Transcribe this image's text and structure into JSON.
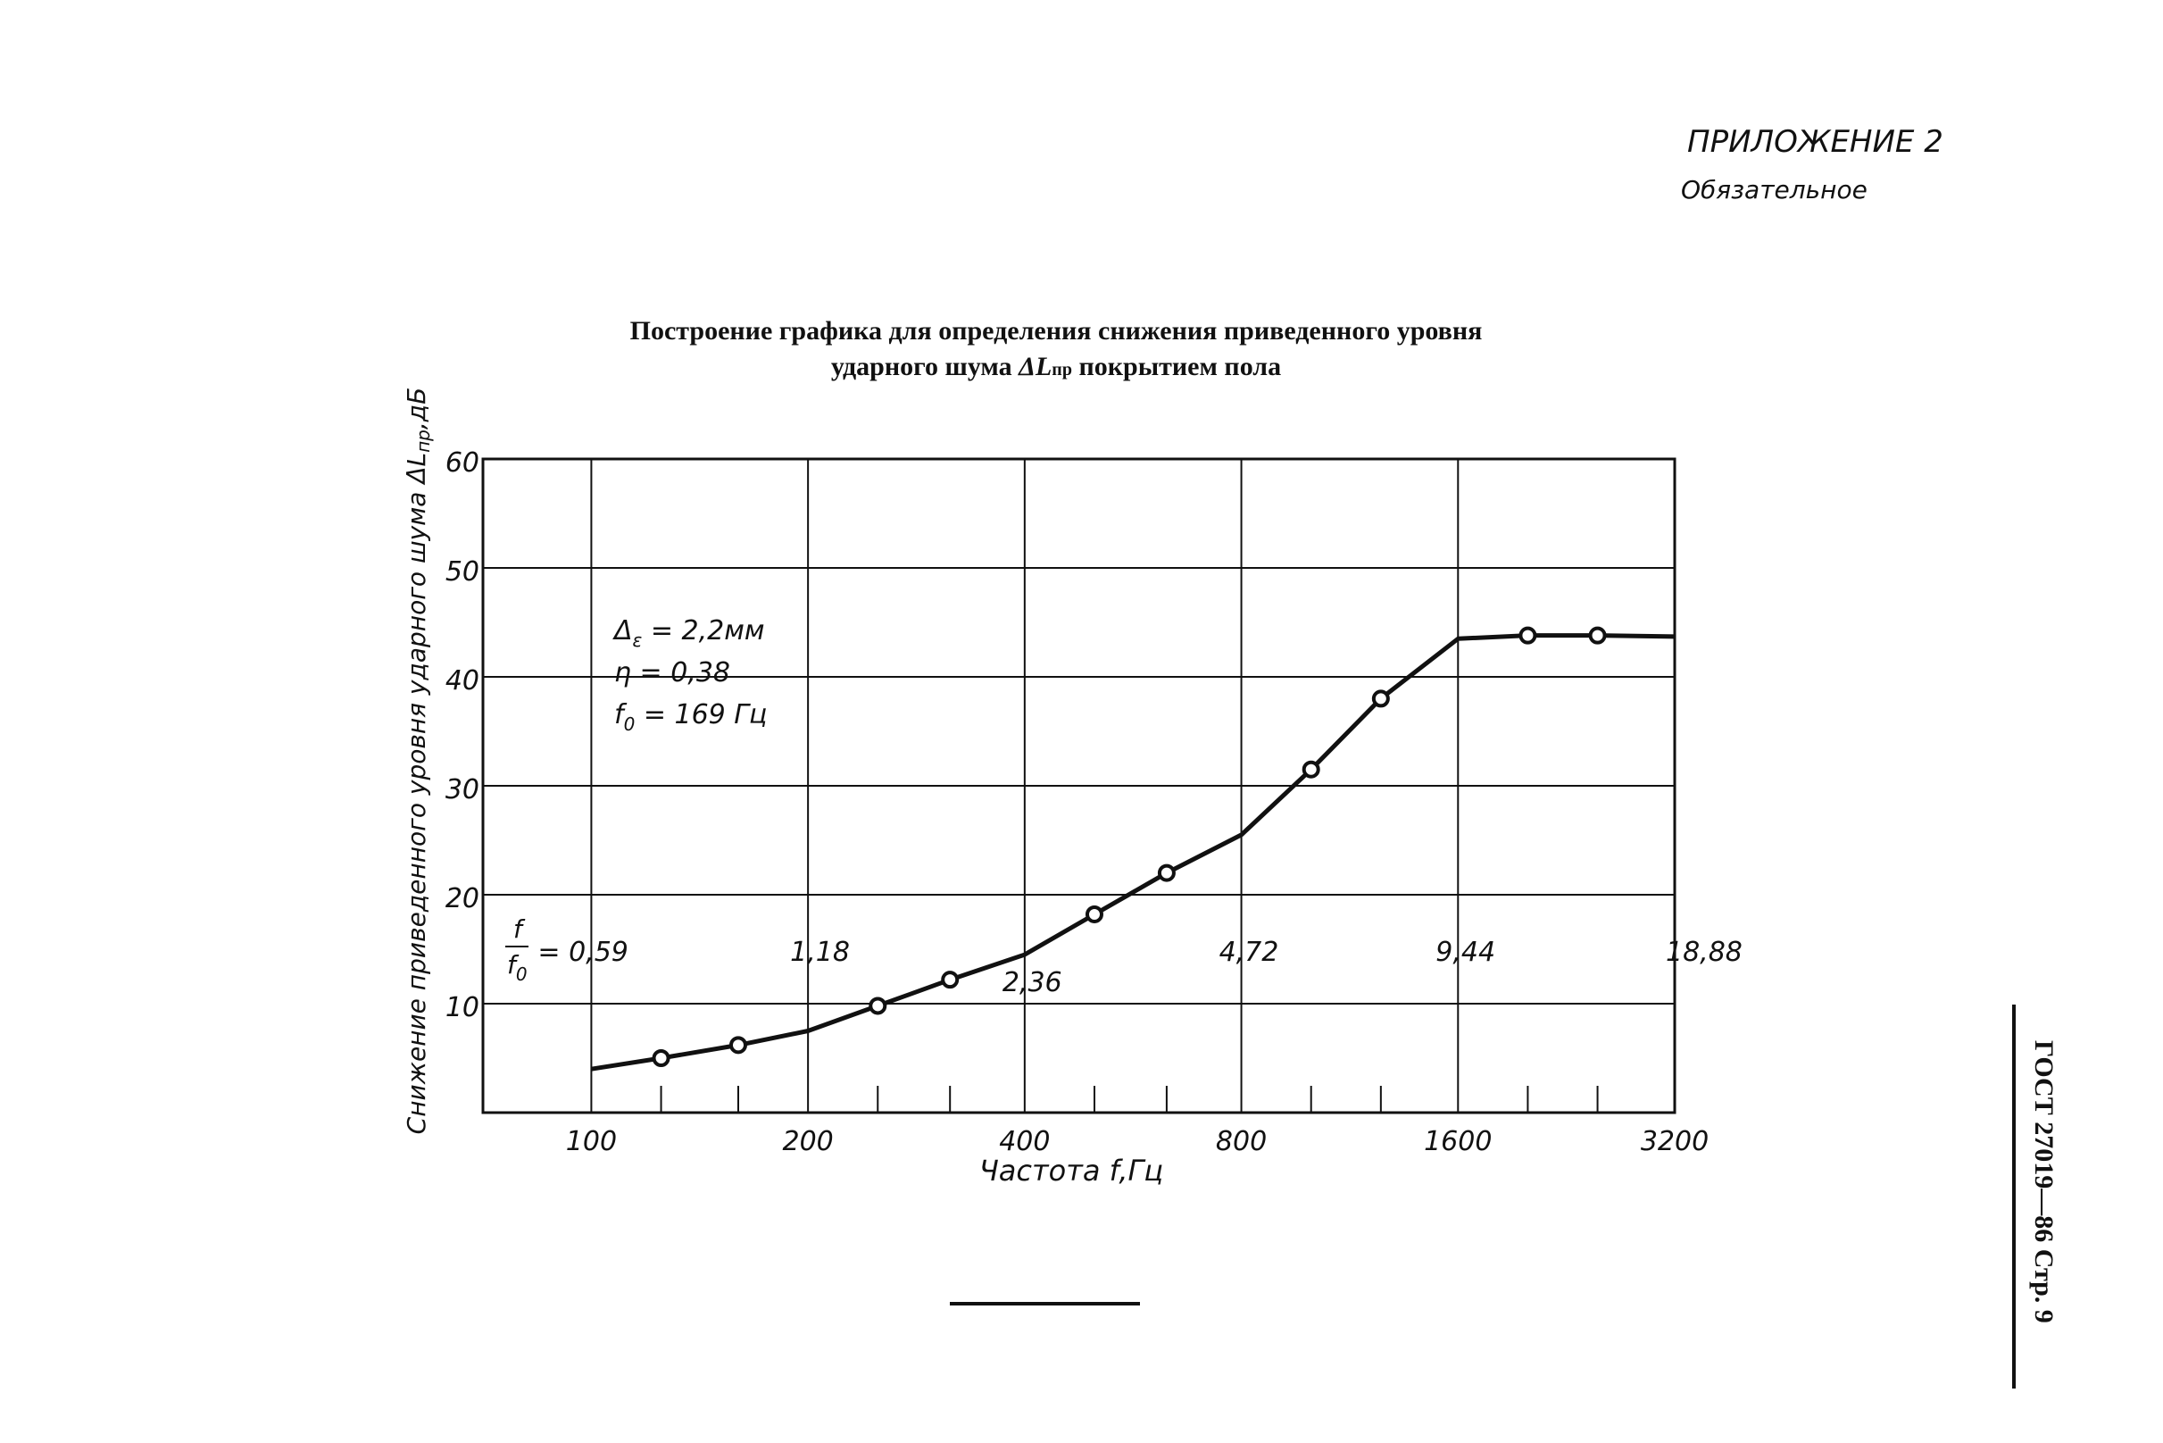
{
  "header": {
    "appendix": "ПРИЛОЖЕНИЕ 2",
    "status": "Обязательное"
  },
  "side_label": "ГОСТ 27019—86 Стр. 9",
  "chart_data": {
    "type": "line",
    "title_line1": "Построение графика для определения снижения приведенного уровня",
    "title_line2_pre": "ударного шума ",
    "title_symbol": "ΔL",
    "title_symbol_sub": "пр",
    "title_line2_post": " покрытием пола",
    "xlabel": "Частота  f,Гц",
    "ylabel_main": "Снижение приведенного уровня ударного шума ΔL",
    "ylabel_sub": "пр",
    "ylabel_unit": ",дБ",
    "x_scale": "log2",
    "xlim": [
      70.7,
      3200
    ],
    "ylim": [
      0,
      60
    ],
    "grid": true,
    "x_ticks": [
      "100",
      "200",
      "400",
      "800",
      "1600",
      "3200"
    ],
    "x_tick_values": [
      100,
      200,
      400,
      800,
      1600,
      3200
    ],
    "x_minor_ticks": [
      125,
      160,
      250,
      315,
      500,
      630,
      1000,
      1250,
      2000,
      2500
    ],
    "y_ticks": [
      "10",
      "20",
      "30",
      "40",
      "50",
      "60"
    ],
    "y_tick_values": [
      10,
      20,
      30,
      40,
      50,
      60
    ],
    "curve": [
      [
        100,
        4
      ],
      [
        125,
        5
      ],
      [
        160,
        6.2
      ],
      [
        200,
        7.5
      ],
      [
        250,
        9.8
      ],
      [
        315,
        12.2
      ],
      [
        400,
        14.5
      ],
      [
        500,
        18.2
      ],
      [
        630,
        22
      ],
      [
        800,
        25.5
      ],
      [
        1000,
        31.5
      ],
      [
        1250,
        38
      ],
      [
        1600,
        43.5
      ],
      [
        2000,
        43.8
      ],
      [
        2500,
        43.8
      ],
      [
        3200,
        43.7
      ]
    ],
    "points": [
      [
        125,
        5
      ],
      [
        160,
        6.2
      ],
      [
        250,
        9.8
      ],
      [
        315,
        12.2
      ],
      [
        500,
        18.2
      ],
      [
        630,
        22
      ],
      [
        1000,
        31.5
      ],
      [
        1250,
        38
      ],
      [
        2000,
        43.8
      ],
      [
        2500,
        43.8
      ]
    ],
    "params": [
      {
        "symbol": "Δ",
        "sub": "ε",
        "text": " = 2,2мм"
      },
      {
        "symbol": "η",
        "sub": "",
        "text": "  = 0,38"
      },
      {
        "symbol": "f",
        "sub": "0",
        "text": "  = 169 Гц"
      }
    ],
    "ratio_label": {
      "numerator": "f",
      "denominator": "f",
      "denominator_sub": "0"
    },
    "ratio_values": [
      {
        "x": 100,
        "text": "= 0,59"
      },
      {
        "x": 200,
        "text": "1,18"
      },
      {
        "x": 400,
        "text": "2,36"
      },
      {
        "x": 800,
        "text": "4,72"
      },
      {
        "x": 1600,
        "text": "9,44"
      },
      {
        "x": 3200,
        "text": "18,88"
      }
    ],
    "line_color": "#111111"
  }
}
